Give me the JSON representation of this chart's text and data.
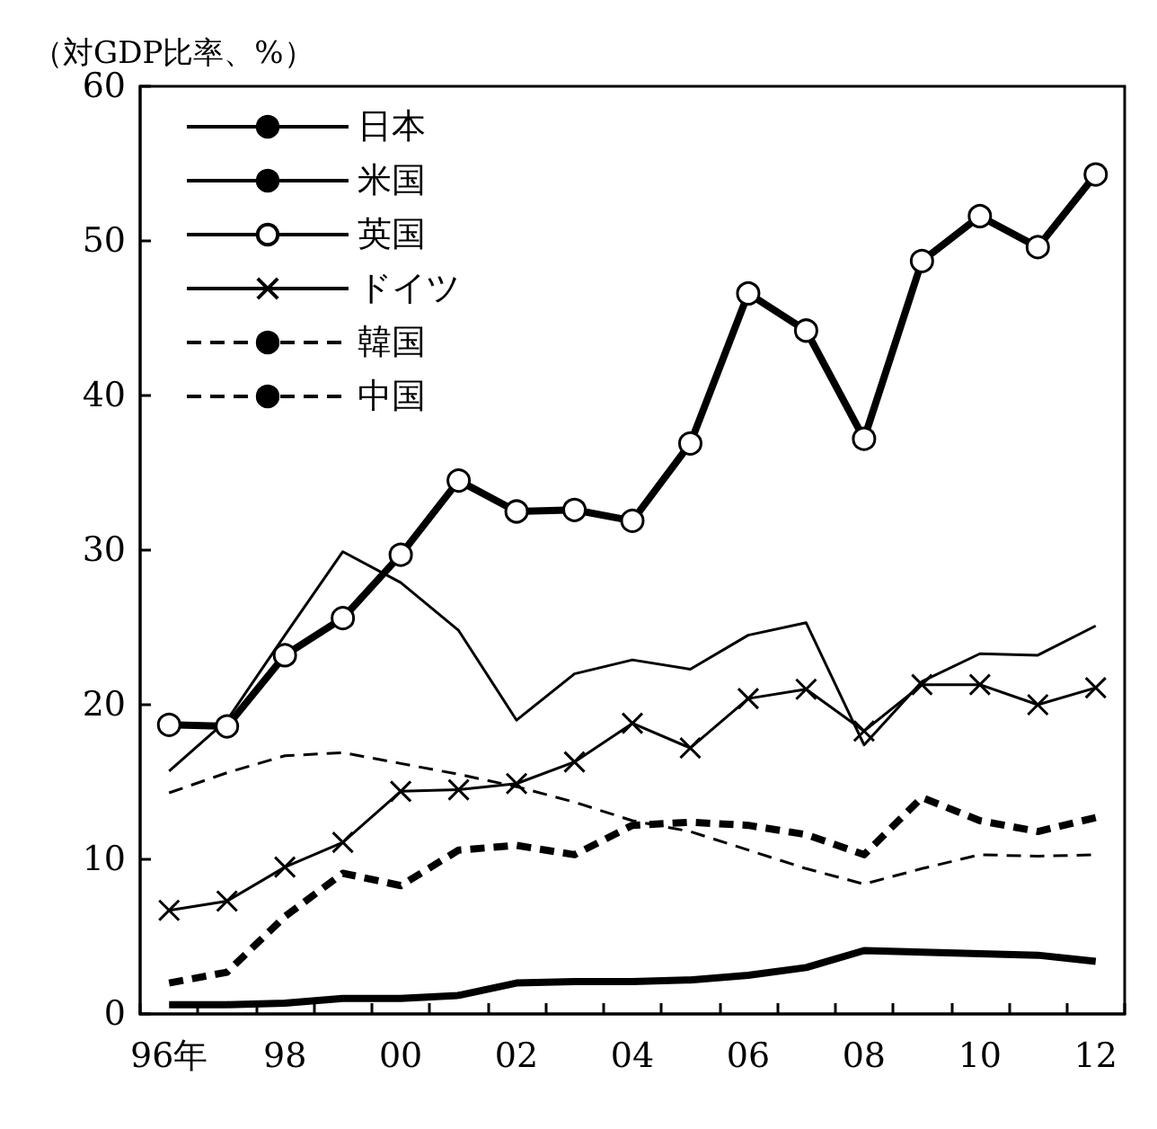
{
  "chart_data": {
    "type": "line",
    "ylabel": "（対GDP比率、%）",
    "categories": [
      "96年",
      null,
      "98",
      null,
      "00",
      null,
      "02",
      null,
      "04",
      null,
      "06",
      null,
      "08",
      null,
      "10",
      null,
      "12"
    ],
    "ylim": [
      0,
      60
    ],
    "yticks": [
      0,
      10,
      20,
      30,
      40,
      50,
      60
    ],
    "grid": false,
    "legend": "top left",
    "series": [
      {
        "name": "日本",
        "color": "#000000",
        "line_style": "solid",
        "marker": "none",
        "values": [
          0.6,
          0.6,
          0.7,
          1.0,
          1.0,
          1.2,
          2.0,
          2.1,
          2.1,
          2.2,
          2.5,
          3.0,
          4.1,
          4.0,
          3.9,
          3.8,
          3.4
        ]
      },
      {
        "name": "米国",
        "color": "#000000",
        "line_style": "solid",
        "marker": "none",
        "values": [
          15.7,
          19.0,
          24.5,
          29.9,
          27.9,
          24.8,
          19.0,
          22.0,
          22.9,
          22.3,
          24.5,
          25.3,
          17.4,
          21.5,
          23.3,
          23.2,
          25.1
        ]
      },
      {
        "name": "英国",
        "color": "#000000",
        "line_style": "solid",
        "marker": "circle",
        "values": [
          18.7,
          18.6,
          23.2,
          25.6,
          29.7,
          34.5,
          32.5,
          32.6,
          31.9,
          36.9,
          46.6,
          44.2,
          37.2,
          48.7,
          51.6,
          49.6,
          54.3
        ]
      },
      {
        "name": "ドイツ",
        "color": "#000000",
        "line_style": "solid",
        "marker": "cross",
        "values": [
          6.7,
          7.3,
          9.5,
          11.1,
          14.4,
          14.5,
          14.9,
          16.3,
          18.8,
          17.2,
          20.4,
          21.0,
          18.3,
          21.3,
          21.3,
          20.0,
          21.1
        ]
      },
      {
        "name": "韓国",
        "color": "#000000",
        "line_style": "dashed",
        "marker": "none",
        "values": [
          2.0,
          2.7,
          6.3,
          9.1,
          8.3,
          10.6,
          10.9,
          10.3,
          12.2,
          12.4,
          12.2,
          11.6,
          10.3,
          14.0,
          12.5,
          11.8,
          12.7
        ]
      },
      {
        "name": "中国",
        "color": "#000000",
        "line_style": "dashed",
        "marker": "none",
        "values": [
          14.3,
          15.6,
          16.7,
          16.9,
          16.2,
          15.5,
          14.7,
          13.7,
          12.5,
          11.8,
          10.6,
          9.4,
          8.4,
          9.4,
          10.3,
          10.2,
          10.3
        ]
      }
    ]
  }
}
